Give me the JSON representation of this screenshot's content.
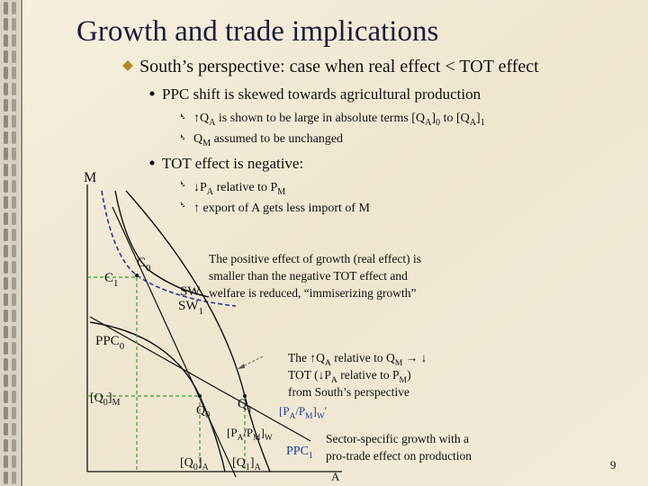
{
  "title": "Growth and trade implications",
  "heading": [
    "South’s perspective: case when real effect < TOT effect"
  ],
  "points": [
    {
      "text": [
        "PPC shift is skewed towards agricultural production"
      ],
      "items": [
        [
          "↑Q",
          "A",
          " is shown to be large in absolute terms [Q",
          "A",
          "]",
          "0",
          " to [Q",
          "A",
          "]",
          "1"
        ],
        [
          "Q",
          "M",
          " assumed to be unchanged"
        ]
      ]
    },
    {
      "text": [
        "TOT effect is negative:"
      ],
      "items": [
        [
          "↓P",
          "A",
          " relative to P",
          "M"
        ],
        [
          "↑ export of A gets less import of M"
        ]
      ]
    }
  ],
  "diagram": {
    "labels": [
      [
        "M"
      ],
      [
        "C",
        "0"
      ],
      [
        "C",
        "1"
      ],
      [
        "SW"
      ],
      [
        "SW",
        "1"
      ],
      [
        "PPC",
        "0"
      ],
      [
        "[Q",
        "0",
        "]",
        "M"
      ],
      [
        "Q",
        "0"
      ],
      [
        "Q",
        "1"
      ],
      [
        "[P",
        "A",
        "/P",
        "M",
        "]",
        "W",
        "'"
      ],
      [
        "[P",
        "A",
        "/P",
        "M",
        "]",
        "W"
      ],
      [
        "[Q",
        "0",
        "]",
        "A"
      ],
      [
        "[Q",
        "1",
        "]",
        "A"
      ],
      [
        "PPC",
        "1"
      ],
      [
        "A"
      ]
    ]
  },
  "notes": [
    [
      [
        "The positive effect of growth (real effect) is"
      ],
      [
        "smaller than the negative TOT effect and"
      ],
      [
        "welfare is reduced, “immiserizing growth”"
      ]
    ],
    [
      [
        "The ↑Q",
        "A",
        " relative to Q",
        "M",
        " → ↓"
      ],
      [
        "TOT (↓P",
        "A",
        " relative to P",
        "M",
        ")"
      ],
      [
        "from South’s perspective"
      ]
    ],
    [
      [
        "Sector-specific growth with a"
      ],
      [
        "pro-trade effect on production"
      ]
    ]
  ],
  "page_number": "9"
}
